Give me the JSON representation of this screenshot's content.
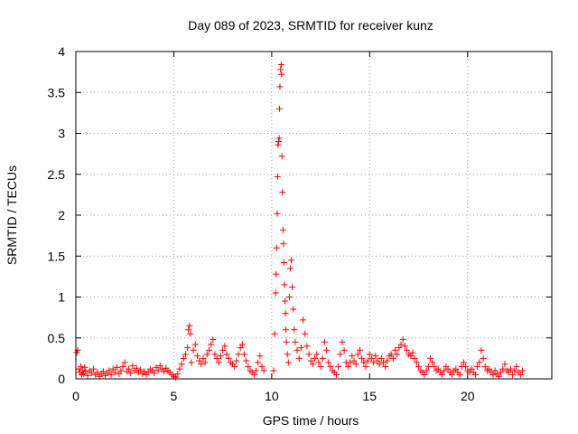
{
  "chart_data": {
    "type": "scatter",
    "title": "Day 089 of 2023, SRMTID for receiver kunz",
    "xlabel": "GPS time / hours",
    "ylabel": "SRMTID / TECUs",
    "xlim": [
      0,
      24.3
    ],
    "ylim": [
      0,
      4
    ],
    "x_ticks": [
      0,
      5,
      10,
      15,
      20
    ],
    "x_tick_labels": [
      "0",
      "5",
      "10",
      "15",
      "20"
    ],
    "y_ticks": [
      0,
      0.5,
      1,
      1.5,
      2,
      2.5,
      3,
      3.5,
      4
    ],
    "y_tick_labels": [
      "0",
      "0.5",
      "1",
      "1.5",
      "2",
      "2.5",
      "3",
      "3.5",
      "4"
    ],
    "grid": true,
    "marker": "+",
    "marker_color": "#ff0000",
    "series": [
      {
        "name": "SRMTID",
        "points": [
          [
            0.05,
            0.32
          ],
          [
            0.1,
            0.35
          ],
          [
            0.15,
            0.12
          ],
          [
            0.2,
            0.08
          ],
          [
            0.25,
            0.15
          ],
          [
            0.3,
            0.05
          ],
          [
            0.35,
            0.1
          ],
          [
            0.4,
            0.06
          ],
          [
            0.45,
            0.14
          ],
          [
            0.5,
            0.09
          ],
          [
            0.6,
            0.04
          ],
          [
            0.7,
            0.1
          ],
          [
            0.8,
            0.07
          ],
          [
            0.9,
            0.12
          ],
          [
            1.0,
            0.05
          ],
          [
            1.1,
            0.08
          ],
          [
            1.2,
            0.03
          ],
          [
            1.3,
            0.06
          ],
          [
            1.4,
            0.09
          ],
          [
            1.5,
            0.04
          ],
          [
            1.6,
            0.07
          ],
          [
            1.7,
            0.1
          ],
          [
            1.8,
            0.05
          ],
          [
            1.9,
            0.12
          ],
          [
            2.0,
            0.08
          ],
          [
            2.1,
            0.14
          ],
          [
            2.2,
            0.06
          ],
          [
            2.3,
            0.1
          ],
          [
            2.4,
            0.15
          ],
          [
            2.5,
            0.2
          ],
          [
            2.6,
            0.09
          ],
          [
            2.7,
            0.12
          ],
          [
            2.8,
            0.07
          ],
          [
            2.9,
            0.16
          ],
          [
            3.0,
            0.1
          ],
          [
            3.1,
            0.13
          ],
          [
            3.2,
            0.08
          ],
          [
            3.3,
            0.11
          ],
          [
            3.4,
            0.06
          ],
          [
            3.5,
            0.09
          ],
          [
            3.6,
            0.05
          ],
          [
            3.7,
            0.08
          ],
          [
            3.8,
            0.12
          ],
          [
            3.9,
            0.1
          ],
          [
            4.0,
            0.07
          ],
          [
            4.1,
            0.14
          ],
          [
            4.2,
            0.1
          ],
          [
            4.3,
            0.16
          ],
          [
            4.4,
            0.12
          ],
          [
            4.5,
            0.09
          ],
          [
            4.6,
            0.13
          ],
          [
            4.7,
            0.1
          ],
          [
            4.8,
            0.08
          ],
          [
            4.9,
            0.05
          ],
          [
            5.0,
            0.03
          ],
          [
            5.1,
            0.02
          ],
          [
            5.2,
            0.06
          ],
          [
            5.3,
            0.12
          ],
          [
            5.4,
            0.18
          ],
          [
            5.5,
            0.25
          ],
          [
            5.6,
            0.3
          ],
          [
            5.7,
            0.38
          ],
          [
            5.75,
            0.6
          ],
          [
            5.8,
            0.65
          ],
          [
            5.85,
            0.55
          ],
          [
            5.9,
            0.2
          ],
          [
            6.0,
            0.35
          ],
          [
            6.1,
            0.42
          ],
          [
            6.2,
            0.28
          ],
          [
            6.3,
            0.22
          ],
          [
            6.4,
            0.18
          ],
          [
            6.5,
            0.25
          ],
          [
            6.6,
            0.2
          ],
          [
            6.7,
            0.3
          ],
          [
            6.8,
            0.35
          ],
          [
            6.9,
            0.42
          ],
          [
            7.0,
            0.48
          ],
          [
            7.1,
            0.3
          ],
          [
            7.2,
            0.25
          ],
          [
            7.3,
            0.2
          ],
          [
            7.4,
            0.28
          ],
          [
            7.5,
            0.35
          ],
          [
            7.6,
            0.4
          ],
          [
            7.7,
            0.3
          ],
          [
            7.8,
            0.25
          ],
          [
            7.9,
            0.2
          ],
          [
            8.0,
            0.18
          ],
          [
            8.1,
            0.15
          ],
          [
            8.2,
            0.22
          ],
          [
            8.3,
            0.3
          ],
          [
            8.4,
            0.38
          ],
          [
            8.5,
            0.42
          ],
          [
            8.6,
            0.3
          ],
          [
            8.7,
            0.22
          ],
          [
            8.8,
            0.15
          ],
          [
            8.9,
            0.1
          ],
          [
            9.0,
            0.08
          ],
          [
            9.1,
            0.05
          ],
          [
            9.2,
            0.1
          ],
          [
            9.3,
            0.2
          ],
          [
            9.4,
            0.28
          ],
          [
            9.5,
            0.15
          ],
          [
            9.6,
            0.1
          ],
          [
            10.1,
            0.1
          ],
          [
            10.15,
            0.55
          ],
          [
            10.2,
            1.05
          ],
          [
            10.22,
            1.28
          ],
          [
            10.25,
            1.6
          ],
          [
            10.28,
            2.02
          ],
          [
            10.3,
            2.47
          ],
          [
            10.32,
            2.86
          ],
          [
            10.35,
            2.9
          ],
          [
            10.38,
            2.94
          ],
          [
            10.4,
            3.3
          ],
          [
            10.42,
            3.57
          ],
          [
            10.45,
            3.78
          ],
          [
            10.48,
            3.84
          ],
          [
            10.5,
            3.72
          ],
          [
            10.52,
            2.72
          ],
          [
            10.55,
            2.28
          ],
          [
            10.58,
            1.82
          ],
          [
            10.6,
            1.65
          ],
          [
            10.62,
            1.42
          ],
          [
            10.65,
            1.15
          ],
          [
            10.68,
            0.95
          ],
          [
            10.7,
            0.8
          ],
          [
            10.72,
            0.6
          ],
          [
            10.75,
            0.45
          ],
          [
            10.8,
            0.3
          ],
          [
            10.85,
            0.2
          ],
          [
            10.9,
            1.0
          ],
          [
            10.95,
            1.35
          ],
          [
            11.0,
            1.45
          ],
          [
            11.05,
            1.12
          ],
          [
            11.1,
            0.85
          ],
          [
            11.15,
            0.6
          ],
          [
            11.2,
            0.45
          ],
          [
            11.3,
            0.35
          ],
          [
            11.4,
            0.25
          ],
          [
            11.5,
            0.38
          ],
          [
            11.6,
            0.72
          ],
          [
            11.7,
            0.55
          ],
          [
            11.8,
            0.4
          ],
          [
            11.9,
            0.3
          ],
          [
            12.0,
            0.22
          ],
          [
            12.1,
            0.18
          ],
          [
            12.2,
            0.25
          ],
          [
            12.3,
            0.3
          ],
          [
            12.4,
            0.2
          ],
          [
            12.5,
            0.15
          ],
          [
            12.6,
            0.25
          ],
          [
            12.7,
            0.45
          ],
          [
            12.8,
            0.35
          ],
          [
            12.9,
            0.2
          ],
          [
            13.0,
            0.15
          ],
          [
            13.1,
            0.1
          ],
          [
            13.2,
            0.08
          ],
          [
            13.3,
            0.05
          ],
          [
            13.4,
            0.15
          ],
          [
            13.5,
            0.3
          ],
          [
            13.6,
            0.45
          ],
          [
            13.7,
            0.35
          ],
          [
            13.8,
            0.2
          ],
          [
            13.9,
            0.15
          ],
          [
            14.0,
            0.2
          ],
          [
            14.1,
            0.28
          ],
          [
            14.2,
            0.22
          ],
          [
            14.3,
            0.18
          ],
          [
            14.4,
            0.3
          ],
          [
            14.5,
            0.35
          ],
          [
            14.6,
            0.25
          ],
          [
            14.7,
            0.2
          ],
          [
            14.8,
            0.15
          ],
          [
            14.9,
            0.22
          ],
          [
            15.0,
            0.3
          ],
          [
            15.1,
            0.25
          ],
          [
            15.2,
            0.2
          ],
          [
            15.3,
            0.28
          ],
          [
            15.4,
            0.22
          ],
          [
            15.5,
            0.18
          ],
          [
            15.6,
            0.25
          ],
          [
            15.7,
            0.2
          ],
          [
            15.8,
            0.15
          ],
          [
            15.9,
            0.22
          ],
          [
            16.0,
            0.28
          ],
          [
            16.1,
            0.3
          ],
          [
            16.2,
            0.25
          ],
          [
            16.3,
            0.35
          ],
          [
            16.4,
            0.3
          ],
          [
            16.5,
            0.38
          ],
          [
            16.6,
            0.42
          ],
          [
            16.7,
            0.48
          ],
          [
            16.8,
            0.4
          ],
          [
            16.9,
            0.35
          ],
          [
            17.0,
            0.3
          ],
          [
            17.1,
            0.28
          ],
          [
            17.2,
            0.32
          ],
          [
            17.3,
            0.25
          ],
          [
            17.4,
            0.2
          ],
          [
            17.5,
            0.15
          ],
          [
            17.6,
            0.1
          ],
          [
            17.7,
            0.08
          ],
          [
            17.8,
            0.05
          ],
          [
            17.9,
            0.1
          ],
          [
            18.0,
            0.15
          ],
          [
            18.1,
            0.25
          ],
          [
            18.2,
            0.2
          ],
          [
            18.3,
            0.15
          ],
          [
            18.4,
            0.1
          ],
          [
            18.5,
            0.12
          ],
          [
            18.6,
            0.08
          ],
          [
            18.7,
            0.05
          ],
          [
            18.8,
            0.1
          ],
          [
            18.9,
            0.15
          ],
          [
            19.0,
            0.12
          ],
          [
            19.1,
            0.08
          ],
          [
            19.2,
            0.05
          ],
          [
            19.3,
            0.1
          ],
          [
            19.4,
            0.12
          ],
          [
            19.5,
            0.08
          ],
          [
            19.6,
            0.05
          ],
          [
            19.7,
            0.15
          ],
          [
            19.8,
            0.2
          ],
          [
            19.9,
            0.15
          ],
          [
            20.0,
            0.1
          ],
          [
            20.1,
            0.08
          ],
          [
            20.2,
            0.12
          ],
          [
            20.3,
            0.08
          ],
          [
            20.4,
            0.05
          ],
          [
            20.5,
            0.15
          ],
          [
            20.6,
            0.2
          ],
          [
            20.7,
            0.35
          ],
          [
            20.8,
            0.25
          ],
          [
            20.9,
            0.15
          ],
          [
            21.0,
            0.1
          ],
          [
            21.1,
            0.12
          ],
          [
            21.2,
            0.08
          ],
          [
            21.3,
            0.05
          ],
          [
            21.4,
            0.1
          ],
          [
            21.5,
            0.06
          ],
          [
            21.6,
            0.03
          ],
          [
            21.7,
            0.08
          ],
          [
            21.8,
            0.12
          ],
          [
            21.9,
            0.18
          ],
          [
            22.0,
            0.1
          ],
          [
            22.1,
            0.08
          ],
          [
            22.2,
            0.12
          ],
          [
            22.3,
            0.05
          ],
          [
            22.4,
            0.1
          ],
          [
            22.5,
            0.15
          ],
          [
            22.6,
            0.08
          ],
          [
            22.7,
            0.05
          ],
          [
            22.8,
            0.1
          ]
        ]
      }
    ]
  }
}
